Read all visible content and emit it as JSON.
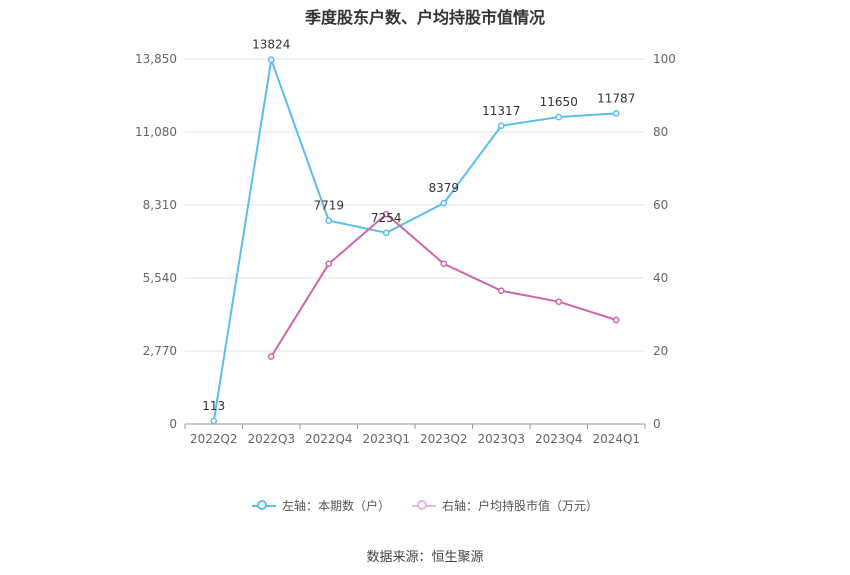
{
  "chart_data": {
    "type": "line",
    "title": "季度股东户数、户均持股市值情况",
    "categories": [
      "2022Q2",
      "2022Q3",
      "2022Q4",
      "2023Q1",
      "2023Q2",
      "2023Q3",
      "2023Q4",
      "2024Q1"
    ],
    "left_axis": {
      "ticks": [
        0,
        2770,
        5540,
        8310,
        11080,
        13850
      ],
      "tick_labels": [
        "0",
        "2,770",
        "5,540",
        "8,310",
        "11,080",
        "13,850"
      ],
      "ylim": [
        0,
        13850
      ]
    },
    "right_axis": {
      "ticks": [
        0,
        20,
        40,
        60,
        80,
        100
      ],
      "tick_labels": [
        "0",
        "20",
        "40",
        "60",
        "80",
        "100"
      ],
      "ylim": [
        0,
        100
      ]
    },
    "series": [
      {
        "name": "左轴：本期数（户）",
        "axis": "left",
        "color": "#5bbdf0",
        "values": [
          113,
          13824,
          7719,
          7254,
          8379,
          11317,
          11650,
          11787
        ],
        "data_labels": [
          "113",
          "13824",
          "7719",
          "7254",
          "8379",
          "11317",
          "11650",
          "11787"
        ]
      },
      {
        "name": "右轴：户均持股市值（万元）",
        "axis": "right",
        "color": "#d066aa",
        "values": [
          null,
          18.5,
          43.9,
          57.5,
          43.9,
          36.5,
          33.5,
          28.5
        ]
      }
    ],
    "grid": true,
    "legend_position": "bottom"
  },
  "source_text": "数据来源：恒生聚源"
}
